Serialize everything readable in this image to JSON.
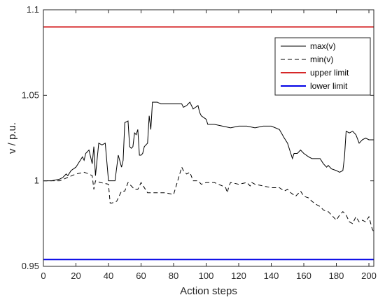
{
  "chart_data": {
    "type": "line",
    "xlabel": "Action steps",
    "ylabel": "v / p.u.",
    "xlim": [
      0,
      203
    ],
    "ylim": [
      0.95,
      1.1
    ],
    "xticks": [
      0,
      20,
      40,
      60,
      80,
      100,
      120,
      140,
      160,
      180,
      200
    ],
    "yticks": [
      0.95,
      1,
      1.05,
      1.1
    ],
    "ytick_labels": [
      "0.95",
      "1",
      "1.05",
      "1.1"
    ],
    "grid": false,
    "legend_position": "top-right",
    "series": [
      {
        "name": "max(v)",
        "color": "#000000",
        "style": "solid",
        "x": [
          0,
          5,
          10,
          12,
          14,
          15,
          17,
          20,
          22,
          24,
          25,
          26,
          28,
          30,
          31,
          32,
          34,
          36,
          38,
          40,
          41,
          42,
          44,
          46,
          48,
          49,
          50,
          52,
          53,
          54,
          55,
          56,
          57,
          58,
          59,
          60,
          61,
          62,
          64,
          65,
          66,
          67,
          68,
          70,
          72,
          75,
          80,
          85,
          86,
          88,
          90,
          92,
          95,
          96,
          97,
          100,
          101,
          102,
          105,
          110,
          115,
          120,
          125,
          130,
          135,
          140,
          145,
          148,
          150,
          152,
          153,
          154,
          156,
          158,
          160,
          163,
          165,
          168,
          170,
          172,
          174,
          175,
          177,
          180,
          182,
          184,
          185,
          186,
          188,
          190,
          192,
          194,
          196,
          198,
          200,
          203
        ],
        "values": [
          1.0,
          1.0,
          1.001,
          1.002,
          1.004,
          1.003,
          1.006,
          1.008,
          1.011,
          1.014,
          1.012,
          1.016,
          1.018,
          1.01,
          1.02,
          1.003,
          1.022,
          1.021,
          1.022,
          1.0,
          1.0,
          1.0,
          1.0,
          1.015,
          1.008,
          1.012,
          1.034,
          1.035,
          1.02,
          1.019,
          1.02,
          1.028,
          1.027,
          1.03,
          1.015,
          1.015,
          1.016,
          1.02,
          1.022,
          1.038,
          1.03,
          1.046,
          1.046,
          1.046,
          1.045,
          1.045,
          1.045,
          1.045,
          1.043,
          1.044,
          1.046,
          1.042,
          1.044,
          1.04,
          1.038,
          1.036,
          1.033,
          1.033,
          1.033,
          1.032,
          1.031,
          1.032,
          1.032,
          1.031,
          1.032,
          1.032,
          1.03,
          1.025,
          1.022,
          1.016,
          1.013,
          1.016,
          1.016,
          1.018,
          1.016,
          1.014,
          1.013,
          1.013,
          1.013,
          1.01,
          1.008,
          1.009,
          1.007,
          1.006,
          1.005,
          1.006,
          1.014,
          1.029,
          1.028,
          1.029,
          1.027,
          1.022,
          1.024,
          1.025,
          1.024,
          1.024
        ]
      },
      {
        "name": "min(v)",
        "color": "#000000",
        "style": "dashed",
        "x": [
          0,
          10,
          15,
          20,
          25,
          28,
          30,
          31,
          32,
          35,
          40,
          41,
          42,
          45,
          48,
          50,
          52,
          54,
          55,
          56,
          58,
          60,
          62,
          64,
          66,
          70,
          75,
          80,
          85,
          86,
          88,
          90,
          92,
          95,
          97,
          100,
          105,
          110,
          112,
          113,
          114,
          115,
          120,
          125,
          127,
          128,
          130,
          135,
          140,
          145,
          148,
          150,
          152,
          155,
          158,
          160,
          163,
          165,
          168,
          170,
          172,
          174,
          175,
          177,
          180,
          182,
          184,
          186,
          188,
          190,
          192,
          194,
          196,
          198,
          200,
          202,
          203
        ],
        "values": [
          1.0,
          1.0,
          1.002,
          1.004,
          1.005,
          1.004,
          1.003,
          0.995,
          1.0,
          0.999,
          0.998,
          0.987,
          0.987,
          0.988,
          0.994,
          0.994,
          0.999,
          0.997,
          0.996,
          0.995,
          0.995,
          0.999,
          0.996,
          0.993,
          0.993,
          0.993,
          0.993,
          0.992,
          1.008,
          1.006,
          1.004,
          1.005,
          1.0,
          1.0,
          0.998,
          0.999,
          0.999,
          0.997,
          0.996,
          0.993,
          0.997,
          0.999,
          0.998,
          0.999,
          0.997,
          0.999,
          0.998,
          0.997,
          0.996,
          0.996,
          0.994,
          0.995,
          0.993,
          0.991,
          0.994,
          0.991,
          0.99,
          0.988,
          0.986,
          0.985,
          0.983,
          0.982,
          0.982,
          0.98,
          0.977,
          0.98,
          0.982,
          0.98,
          0.976,
          0.975,
          0.979,
          0.976,
          0.977,
          0.976,
          0.979,
          0.972,
          0.97
        ]
      },
      {
        "name": "upper limit",
        "color": "#d62728",
        "style": "solid",
        "x": [
          0,
          203
        ],
        "values": [
          1.09,
          1.09
        ]
      },
      {
        "name": "lower limit",
        "color": "#0000e6",
        "style": "solid",
        "x": [
          0,
          203
        ],
        "values": [
          0.954,
          0.954
        ]
      }
    ]
  }
}
